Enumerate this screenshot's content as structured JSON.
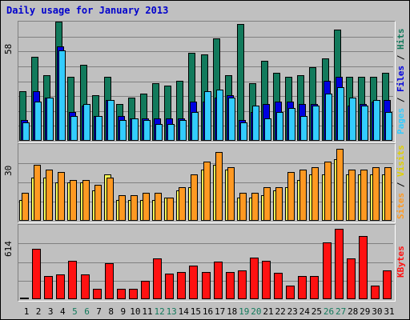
{
  "title": "Daily usage for January 2013",
  "colors": {
    "background": "#c0c0c0",
    "title": "#0000cc",
    "hits": "#127a5c",
    "files": "#0000e0",
    "pages": "#33ccff",
    "visits": "#ffff55",
    "sites": "#ff9922",
    "kbytes": "#ff1111",
    "weekend_label": "#127a5c"
  },
  "legend": {
    "pages": "Pages",
    "files": "Files",
    "hits": "Hits",
    "sites": "Sites",
    "visits": "Visits",
    "kbytes": "KBytes",
    "sep": " / "
  },
  "chart_data": [
    {
      "type": "bar",
      "title": "Daily usage for January 2013",
      "ymax_label": "58",
      "ylim": [
        0,
        58
      ],
      "grid": true,
      "legend_position": "right-vertical",
      "categories": [
        "1",
        "2",
        "3",
        "4",
        "5",
        "6",
        "7",
        "8",
        "9",
        "10",
        "11",
        "12",
        "13",
        "14",
        "15",
        "16",
        "17",
        "18",
        "19",
        "20",
        "21",
        "22",
        "23",
        "24",
        "25",
        "26",
        "27",
        "28",
        "29",
        "30",
        "31"
      ],
      "weekend_days": [
        "5",
        "6",
        "12",
        "13",
        "19",
        "20",
        "26",
        "27"
      ],
      "series": [
        {
          "name": "Hits",
          "values": [
            24,
            41,
            32,
            58,
            31,
            37,
            22,
            31,
            18,
            21,
            23,
            28,
            27,
            29,
            43,
            42,
            50,
            32,
            57,
            28,
            39,
            33,
            31,
            32,
            36,
            40,
            54,
            31,
            31,
            31,
            33
          ]
        },
        {
          "name": "Files",
          "values": [
            10,
            24,
            21,
            46,
            14,
            17,
            12,
            20,
            12,
            11,
            11,
            11,
            11,
            11,
            19,
            19,
            21,
            22,
            10,
            14,
            18,
            19,
            19,
            18,
            18,
            29,
            31,
            17,
            18,
            19,
            20
          ]
        },
        {
          "name": "Pages",
          "values": [
            9,
            19,
            21,
            44,
            12,
            18,
            12,
            20,
            10,
            11,
            10,
            8,
            8,
            10,
            14,
            24,
            25,
            21,
            9,
            17,
            11,
            14,
            16,
            12,
            17,
            23,
            26,
            21,
            17,
            20,
            14
          ]
        }
      ]
    },
    {
      "type": "bar",
      "ymax_label": "30",
      "ylim": [
        0,
        30
      ],
      "grid": true,
      "legend_position": "right-vertical",
      "categories": [
        "1",
        "2",
        "3",
        "4",
        "5",
        "6",
        "7",
        "8",
        "9",
        "10",
        "11",
        "12",
        "13",
        "14",
        "15",
        "16",
        "17",
        "18",
        "19",
        "20",
        "21",
        "22",
        "23",
        "24",
        "25",
        "26",
        "27",
        "28",
        "29",
        "30",
        "31"
      ],
      "series": [
        {
          "name": "Sites",
          "values": [
            11,
            22,
            20,
            19,
            16,
            16,
            14,
            17,
            10,
            10,
            11,
            11,
            9,
            13,
            18,
            23,
            27,
            21,
            11,
            11,
            13,
            13,
            19,
            20,
            21,
            23,
            28,
            20,
            20,
            21,
            21
          ]
        },
        {
          "name": "Visits",
          "values": [
            8,
            17,
            17,
            15,
            15,
            15,
            12,
            18,
            8,
            8,
            8,
            8,
            9,
            12,
            13,
            20,
            22,
            20,
            9,
            9,
            10,
            12,
            13,
            16,
            18,
            18,
            24,
            18,
            18,
            18,
            18
          ]
        }
      ]
    },
    {
      "type": "bar",
      "ymax_label": "614",
      "ylim": [
        0,
        614
      ],
      "grid": true,
      "legend_position": "right-vertical",
      "categories": [
        "1",
        "2",
        "3",
        "4",
        "5",
        "6",
        "7",
        "8",
        "9",
        "10",
        "11",
        "12",
        "13",
        "14",
        "15",
        "16",
        "17",
        "18",
        "19",
        "20",
        "21",
        "22",
        "23",
        "24",
        "25",
        "26",
        "27",
        "28",
        "29",
        "30",
        "31"
      ],
      "series": [
        {
          "name": "KBytes",
          "values": [
            12,
            414,
            193,
            202,
            320,
            206,
            83,
            298,
            88,
            86,
            150,
            337,
            213,
            224,
            278,
            226,
            312,
            224,
            238,
            341,
            316,
            220,
            114,
            189,
            194,
            468,
            584,
            336,
            521,
            115,
            235
          ]
        }
      ]
    }
  ]
}
